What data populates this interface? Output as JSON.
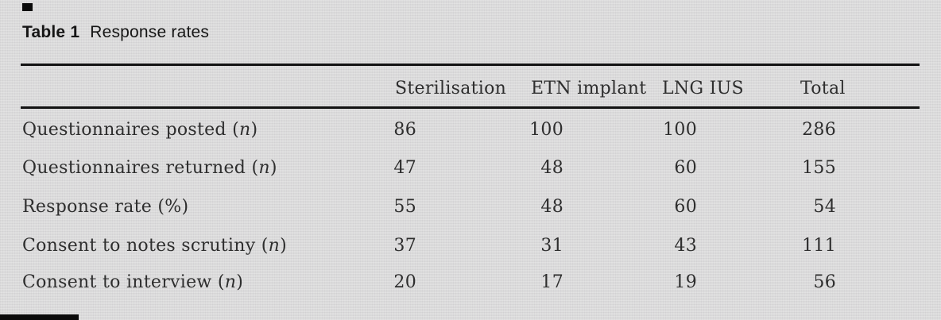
{
  "title": {
    "label": "Table 1",
    "text": "Response rates"
  },
  "table": {
    "columns": [
      "Sterilisation",
      "ETN implant",
      "LNG IUS",
      "Total"
    ],
    "rows": [
      {
        "label_text": "Questionnaires posted (",
        "label_var": "n",
        "label_close": ")",
        "values": [
          "86",
          "100",
          "100",
          "286"
        ]
      },
      {
        "label_text": "Questionnaires returned (",
        "label_var": "n",
        "label_close": ")",
        "values": [
          "47",
          "48",
          "60",
          "155"
        ]
      },
      {
        "label_text": "Response rate (",
        "label_var": "%",
        "label_close": ")",
        "values": [
          "55",
          "48",
          "60",
          "54"
        ]
      },
      {
        "label_text": "Consent to notes scrutiny (",
        "label_var": "n",
        "label_close": ")",
        "values": [
          "37",
          "31",
          "43",
          "111"
        ]
      },
      {
        "label_text": "Consent to interview (",
        "label_var": "n",
        "label_close": ")",
        "values": [
          "20",
          "17",
          "19",
          "56"
        ]
      }
    ]
  },
  "colors": {
    "background": "#d8d8d8",
    "text": "#2e2e2e",
    "rule": "#131313"
  }
}
